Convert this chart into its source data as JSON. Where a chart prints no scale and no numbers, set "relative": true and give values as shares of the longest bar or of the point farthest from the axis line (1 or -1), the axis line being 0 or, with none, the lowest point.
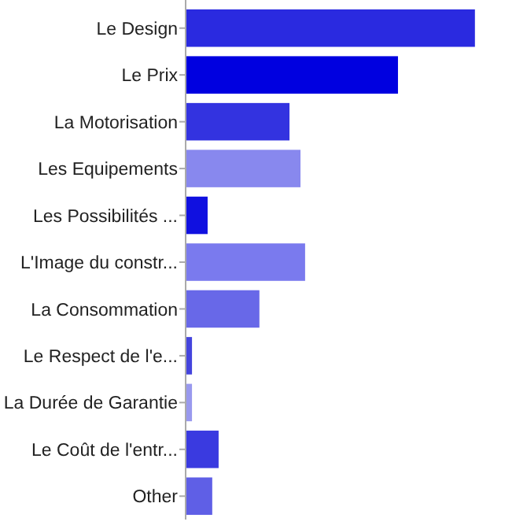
{
  "chart_data": {
    "type": "bar",
    "orientation": "horizontal",
    "relative": true,
    "categories": [
      "Le Design",
      "Le Prix",
      "La Motorisation",
      "Les Equipements",
      "Les Possibilités ...",
      "L'Image du constr...",
      "La Consommation",
      "Le Respect de l'e...",
      "La Durée de Garantie",
      "Le Coût de l'entr...",
      "Other"
    ],
    "values": [
      1,
      0.734,
      0.359,
      0.397,
      0.076,
      0.413,
      0.255,
      0.022,
      0.022,
      0.114,
      0.092
    ],
    "colors": [
      "#2a2ae0",
      "#0000e0",
      "#3333e0",
      "#8888ee",
      "#1010e0",
      "#7a7aee",
      "#6868e8",
      "#4444dd",
      "#9999ee",
      "#3a3ae0",
      "#5f5fe6"
    ]
  }
}
